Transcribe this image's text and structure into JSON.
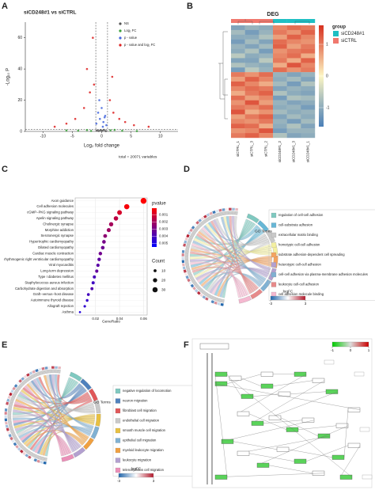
{
  "panel_labels": [
    "A",
    "B",
    "C",
    "D",
    "E",
    "F"
  ],
  "chart_data": [
    {
      "type": "scatter",
      "title": "siCD248#1 vs siCTRL",
      "xlabel": "Log₂ fold change",
      "ylabel": "-Log₁₀ P",
      "caption": "total = 20071 variables",
      "xlim": [
        -13,
        13
      ],
      "ylim": [
        0,
        70
      ],
      "xticks": [
        -10,
        -5,
        0,
        5,
        10
      ],
      "yticks": [
        0,
        20,
        40,
        60
      ],
      "thresholds": {
        "x": [
          -1,
          1
        ],
        "y": 1.3
      },
      "series": [
        {
          "name": "NS",
          "color": "#555555",
          "x": [
            -0.5,
            -0.2,
            0.1,
            0.4,
            0.7,
            -0.8
          ],
          "y": [
            0.3,
            0.8,
            0.5,
            1.0,
            0.2,
            0.6
          ]
        },
        {
          "name": "Log₂ FC",
          "color": "#3aa03a",
          "x": [
            -4,
            -2.5,
            -1.8,
            1.5,
            2.2,
            3.5,
            6,
            -6
          ],
          "y": [
            0.5,
            0.9,
            0.3,
            0.7,
            1.0,
            0.4,
            0.2,
            0.6
          ]
        },
        {
          "name": "p - value",
          "color": "#4466dd",
          "x": [
            -0.9,
            -0.6,
            -0.3,
            0,
            0.3,
            0.6,
            0.8,
            -0.4,
            0.2,
            0.5
          ],
          "y": [
            5,
            12,
            8,
            15,
            6,
            10,
            4,
            20,
            3,
            9
          ]
        },
        {
          "name": "p - value and log₂ FC",
          "color": "#dd2222",
          "x": [
            -1.5,
            -2,
            -3,
            -4.5,
            -6,
            -2.5,
            -1.3,
            1.4,
            2,
            3,
            4,
            5.5,
            1.8,
            -8,
            8
          ],
          "y": [
            60,
            25,
            15,
            8,
            5,
            40,
            30,
            20,
            12,
            8,
            6,
            4,
            35,
            3,
            3
          ]
        }
      ]
    },
    {
      "type": "heatmap",
      "title": "DEG",
      "categories": [
        "siCTRL_1",
        "siCTRL_3",
        "siCTRL_2",
        "siCD248#1_2",
        "siCD248#1_3",
        "siCD248#1_1"
      ],
      "legend_title": "group",
      "groups": [
        {
          "name": "siCD248#1",
          "color": "#1fbfc3"
        },
        {
          "name": "siCTRL",
          "color": "#f0786e"
        }
      ],
      "column_groups": [
        1,
        1,
        1,
        0,
        0,
        0
      ],
      "clim": [
        -1.6,
        1.6
      ],
      "cticks": [
        -1,
        0,
        1
      ],
      "colors": [
        "#4a7fb8",
        "#fdf6c3",
        "#d7301f"
      ],
      "values": [
        [
          -1.1,
          -0.9,
          -1.0,
          0.9,
          1.1,
          1.0
        ],
        [
          -0.8,
          -1.2,
          -0.9,
          1.0,
          0.8,
          1.2
        ],
        [
          -1.0,
          -1.0,
          -0.7,
          0.7,
          1.2,
          0.9
        ],
        [
          -1.2,
          -0.8,
          -1.1,
          1.1,
          0.9,
          0.8
        ],
        [
          -0.9,
          -1.1,
          -0.8,
          1.2,
          0.7,
          1.0
        ],
        [
          -1.0,
          -0.7,
          -1.2,
          0.8,
          1.0,
          1.1
        ],
        [
          -0.6,
          -1.0,
          -0.9,
          0.9,
          1.1,
          0.6
        ],
        [
          -1.1,
          -1.1,
          -0.6,
          1.0,
          0.6,
          1.2
        ],
        [
          -0.7,
          -0.9,
          -1.0,
          0.6,
          1.3,
          0.9
        ],
        [
          -1.2,
          -0.6,
          -0.9,
          1.1,
          0.8,
          1.0
        ],
        [
          1.0,
          0.8,
          1.1,
          -0.9,
          -1.1,
          -0.9
        ],
        [
          0.7,
          1.2,
          0.9,
          -1.0,
          -0.8,
          -1.1
        ],
        [
          1.2,
          0.9,
          0.6,
          -0.8,
          -1.2,
          -0.7
        ],
        [
          0.9,
          1.1,
          1.0,
          -1.1,
          -0.9,
          -1.0
        ],
        [
          0.6,
          1.0,
          1.2,
          -0.7,
          -1.0,
          -1.1
        ],
        [
          1.1,
          0.7,
          0.9,
          -1.2,
          -0.7,
          -0.8
        ],
        [
          0.8,
          1.3,
          0.7,
          -0.9,
          -1.1,
          -1.0
        ],
        [
          1.0,
          0.9,
          1.1,
          -1.0,
          -0.9,
          -1.2
        ],
        [
          1.3,
          0.6,
          0.8,
          -0.8,
          -1.0,
          -0.9
        ],
        [
          0.7,
          1.0,
          1.2,
          -1.1,
          -0.8,
          -1.0
        ],
        [
          0.9,
          0.8,
          1.0,
          -0.9,
          -1.2,
          -0.8
        ],
        [
          1.2,
          1.1,
          0.6,
          -1.0,
          -0.7,
          -1.1
        ],
        [
          0.8,
          0.9,
          1.3,
          -1.2,
          -0.9,
          -0.9
        ],
        [
          1.0,
          1.2,
          0.9,
          -0.7,
          -1.1,
          -1.0
        ]
      ]
    },
    {
      "type": "dot",
      "xlabel": "GeneRatio",
      "categories": [
        "Axon guidance",
        "Cell adhesion molecules",
        "cGMP−PKG signaling pathway",
        "Apelin signaling pathway",
        "Cholinergic synapse",
        "Morphine addiction",
        "Serotonergic synapse",
        "Hypertrophic cardiomyopathy",
        "Dilated cardiomyopathy",
        "Cardiac muscle contraction",
        "rhythmogenic right ventricular cardiomyopathy",
        "Viral myocarditis",
        "Long-term depression",
        "Type I diabetes mellitus",
        "Staphylococcus aureus infection",
        "Carbohydrate digestion and absorption",
        "Graft−versus−host disease",
        "Autoimmune thyroid disease",
        "Allograft rejection",
        "Asthma"
      ],
      "values": [
        0.06,
        0.046,
        0.04,
        0.037,
        0.033,
        0.031,
        0.028,
        0.027,
        0.026,
        0.024,
        0.023,
        0.022,
        0.021,
        0.019,
        0.018,
        0.017,
        0.014,
        0.013,
        0.011,
        0.007
      ],
      "pvalue": [
        0.0001,
        0.0003,
        0.001,
        0.0015,
        0.002,
        0.0022,
        0.0025,
        0.003,
        0.0032,
        0.0031,
        0.0035,
        0.0036,
        0.0034,
        0.004,
        0.0042,
        0.0038,
        0.0041,
        0.0044,
        0.0045,
        0.0048
      ],
      "count": [
        38,
        30,
        25,
        22,
        20,
        18,
        16,
        15,
        15,
        14,
        13,
        12,
        12,
        11,
        11,
        10,
        9,
        8,
        7,
        5
      ],
      "xlim": [
        0.003,
        0.063
      ],
      "xticks": [
        0.02,
        0.04,
        0.06
      ],
      "color_title": "pvalue",
      "clim": [
        0.0001,
        0.0055
      ],
      "cticks": [
        0.001,
        0.002,
        0.003,
        0.004,
        0.005
      ],
      "colors": [
        "#ff0000",
        "#0000ff"
      ],
      "size_title": "Count",
      "size_ticks": [
        10,
        20,
        30
      ]
    },
    {
      "type": "chord",
      "legend_title": "GO Terms",
      "scale_title": "logFC",
      "scale_ticks": [
        -3,
        3
      ],
      "scale_colors": [
        "#2166ac",
        "#ffffff",
        "#b2182b"
      ],
      "terms": [
        {
          "name": "regulation of cell-cell adhesion",
          "color": "#7fc9c0"
        },
        {
          "name": "cell-substrate adhesion",
          "color": "#67b7d6"
        },
        {
          "name": "extracellular matrix binding",
          "color": "#c9c9c9"
        },
        {
          "name": "homotypic cell-cell adhesion",
          "color": "#f4f0a0"
        },
        {
          "name": "substrate adhesion-dependent cell spreading",
          "color": "#f4a460"
        },
        {
          "name": "heterotypic cell-cell adhesion",
          "color": "#b3a0d0"
        },
        {
          "name": "cell-cell adhesion via plasma-membrane adhesion molecules",
          "color": "#80b1d3"
        },
        {
          "name": "leukocyte cell-cell adhesion",
          "color": "#e78a8a"
        },
        {
          "name": "cell adhesion molecule binding",
          "color": "#f5b8d0"
        }
      ]
    },
    {
      "type": "chord",
      "legend_title": "GO Terms",
      "scale_title": "logFC",
      "scale_ticks": [
        -3,
        3
      ],
      "scale_colors": [
        "#2166ac",
        "#ffffff",
        "#b2182b"
      ],
      "terms": [
        {
          "name": "negative regulation of locomotion",
          "color": "#7fc9c0"
        },
        {
          "name": "neuron migration",
          "color": "#4f81bd"
        },
        {
          "name": "fibroblast cell migration",
          "color": "#e15759"
        },
        {
          "name": "endothelial cell migration",
          "color": "#c9c9c9"
        },
        {
          "name": "smooth muscle cell migration",
          "color": "#e8c040"
        },
        {
          "name": "epithelial cell migration",
          "color": "#80b1d3"
        },
        {
          "name": "myeloid leukocyte migration",
          "color": "#f0a040"
        },
        {
          "name": "leukocyte migration",
          "color": "#b3a0d0"
        },
        {
          "name": "telencephalon cell migration",
          "color": "#eb8fb8"
        }
      ]
    },
    {
      "type": "pathway",
      "scale_ticks": [
        -1,
        0,
        1
      ],
      "scale_colors": [
        "#00cc00",
        "#dddddd",
        "#cc0000"
      ]
    }
  ]
}
